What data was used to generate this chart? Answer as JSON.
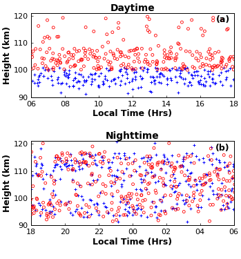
{
  "panel_a": {
    "title": "Daytime",
    "label": "(a)",
    "xlabel": "Local Time (Hrs)",
    "ylabel": "Height (km)",
    "xlim": [
      6,
      18
    ],
    "ylim": [
      90,
      121
    ],
    "xticks": [
      6,
      8,
      10,
      12,
      14,
      16,
      18
    ],
    "xticklabels": [
      "06",
      "08",
      "10",
      "12",
      "14",
      "16",
      "18"
    ],
    "yticks": [
      90,
      100,
      110,
      120
    ]
  },
  "panel_b": {
    "title": "Nighttime",
    "label": "(b)",
    "xlabel": "Local Time (Hrs)",
    "ylabel": "Height (km)",
    "xlim": [
      18,
      30
    ],
    "ylim": [
      90,
      121
    ],
    "xticks": [
      18,
      20,
      22,
      24,
      26,
      28,
      30
    ],
    "xticklabels": [
      "18",
      "20",
      "22",
      "00",
      "02",
      "04",
      "06"
    ],
    "yticks": [
      90,
      100,
      110,
      120
    ]
  },
  "circle_color": "#FF0000",
  "plus_color": "#0000FF",
  "circle_size": 8,
  "plus_size": 10,
  "title_fontsize": 10,
  "label_fontsize": 9,
  "tick_fontsize": 8,
  "axis_label_fontsize": 9
}
